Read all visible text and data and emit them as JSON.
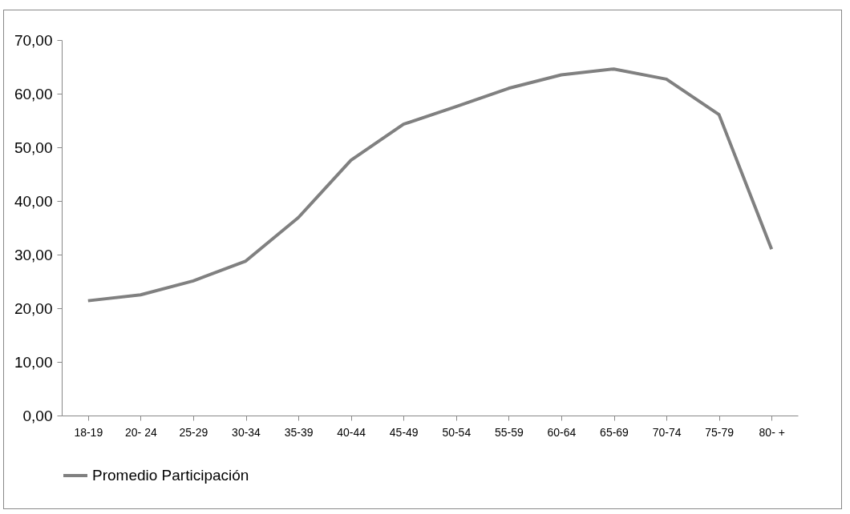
{
  "chart_data": {
    "type": "line",
    "categories": [
      "18-19",
      "20- 24",
      "25-29",
      "30-34",
      "35-39",
      "40-44",
      "45-49",
      "50-54",
      "55-59",
      "60-64",
      "65-69",
      "70-74",
      "75-79",
      "80- +"
    ],
    "series": [
      {
        "name": "Promedio Participación",
        "color": "#808080",
        "values": [
          21.4,
          22.5,
          25.1,
          28.8,
          36.9,
          47.6,
          54.3,
          57.6,
          61.0,
          63.5,
          64.6,
          62.7,
          56.1,
          31.0
        ]
      }
    ],
    "ylim": [
      0,
      70
    ],
    "yticks": [
      {
        "value": 0,
        "label": "0,00"
      },
      {
        "value": 10,
        "label": "10,00"
      },
      {
        "value": 20,
        "label": "20,00"
      },
      {
        "value": 30,
        "label": "30,00"
      },
      {
        "value": 40,
        "label": "40,00"
      },
      {
        "value": 50,
        "label": "50,00"
      },
      {
        "value": 60,
        "label": "60,00"
      },
      {
        "value": 70,
        "label": "70,00"
      }
    ],
    "grid": false,
    "legend": "bottom",
    "marker": "none",
    "line_style": "solid"
  }
}
